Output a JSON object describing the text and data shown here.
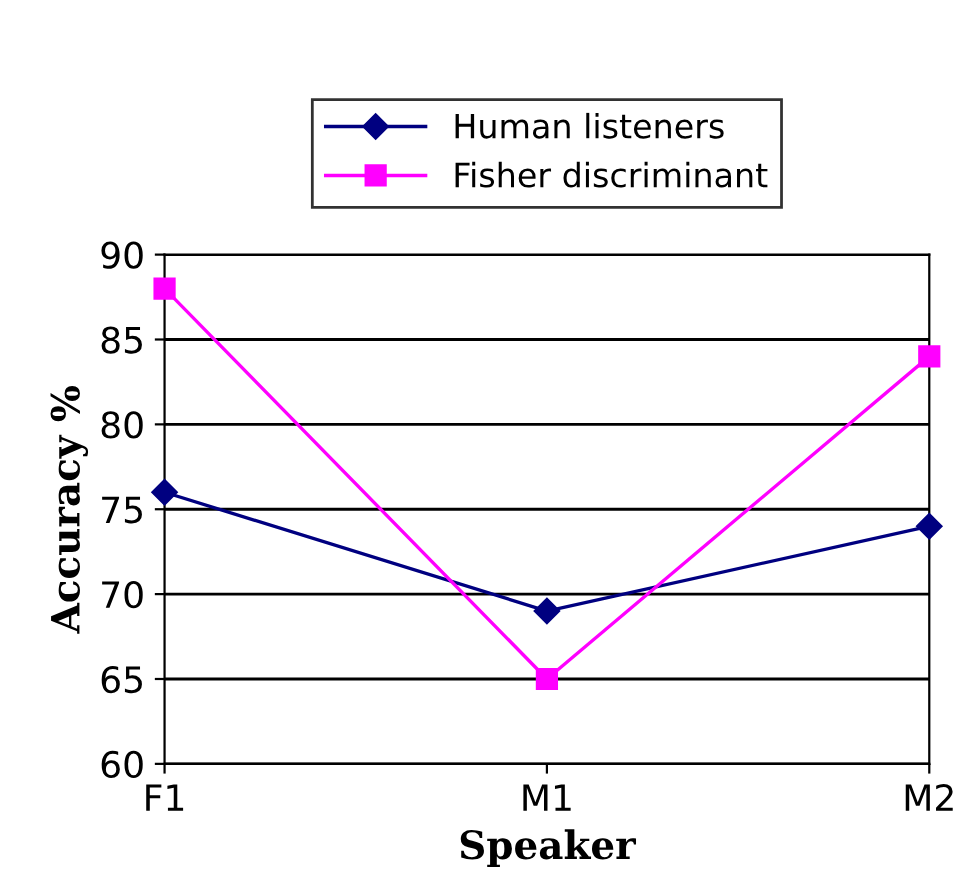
{
  "chart_data": {
    "type": "line",
    "xlabel": "Speaker",
    "ylabel": "Accuracy %",
    "categories": [
      "F1",
      "M1",
      "M2"
    ],
    "series": [
      {
        "name": "Human listeners",
        "color": "#000080",
        "marker": "diamond",
        "values": [
          76,
          69,
          74
        ]
      },
      {
        "name": "Fisher discriminant",
        "color": "#ff00ff",
        "marker": "square",
        "values": [
          88,
          65,
          84
        ]
      }
    ],
    "ylim": [
      60,
      90
    ],
    "yticks": [
      60,
      65,
      70,
      75,
      80,
      85,
      90
    ],
    "grid": "y",
    "legend": "top"
  }
}
